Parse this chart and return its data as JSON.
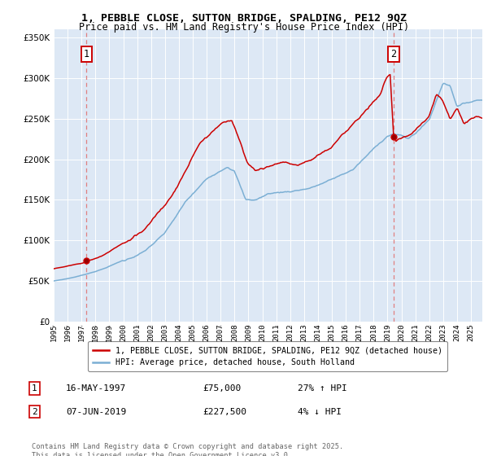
{
  "title_line1": "1, PEBBLE CLOSE, SUTTON BRIDGE, SPALDING, PE12 9QZ",
  "title_line2": "Price paid vs. HM Land Registry's House Price Index (HPI)",
  "legend_label_red": "1, PEBBLE CLOSE, SUTTON BRIDGE, SPALDING, PE12 9QZ (detached house)",
  "legend_label_blue": "HPI: Average price, detached house, South Holland",
  "annotation1_date": "16-MAY-1997",
  "annotation1_price": "£75,000",
  "annotation1_hpi": "27% ↑ HPI",
  "annotation2_date": "07-JUN-2019",
  "annotation2_price": "£227,500",
  "annotation2_hpi": "4% ↓ HPI",
  "footnote": "Contains HM Land Registry data © Crown copyright and database right 2025.\nThis data is licensed under the Open Government Licence v3.0.",
  "red_color": "#cc0000",
  "blue_color": "#7bafd4",
  "background_color": "#dde8f5",
  "grid_color": "#ffffff",
  "dashed_line_color": "#e08080",
  "sale1_year": 1997.37,
  "sale1_value": 75000,
  "sale2_year": 2019.43,
  "sale2_value": 227500,
  "ylim_max": 360000,
  "ylim_min": 0,
  "xlim_min": 1995.0,
  "xlim_max": 2025.8
}
